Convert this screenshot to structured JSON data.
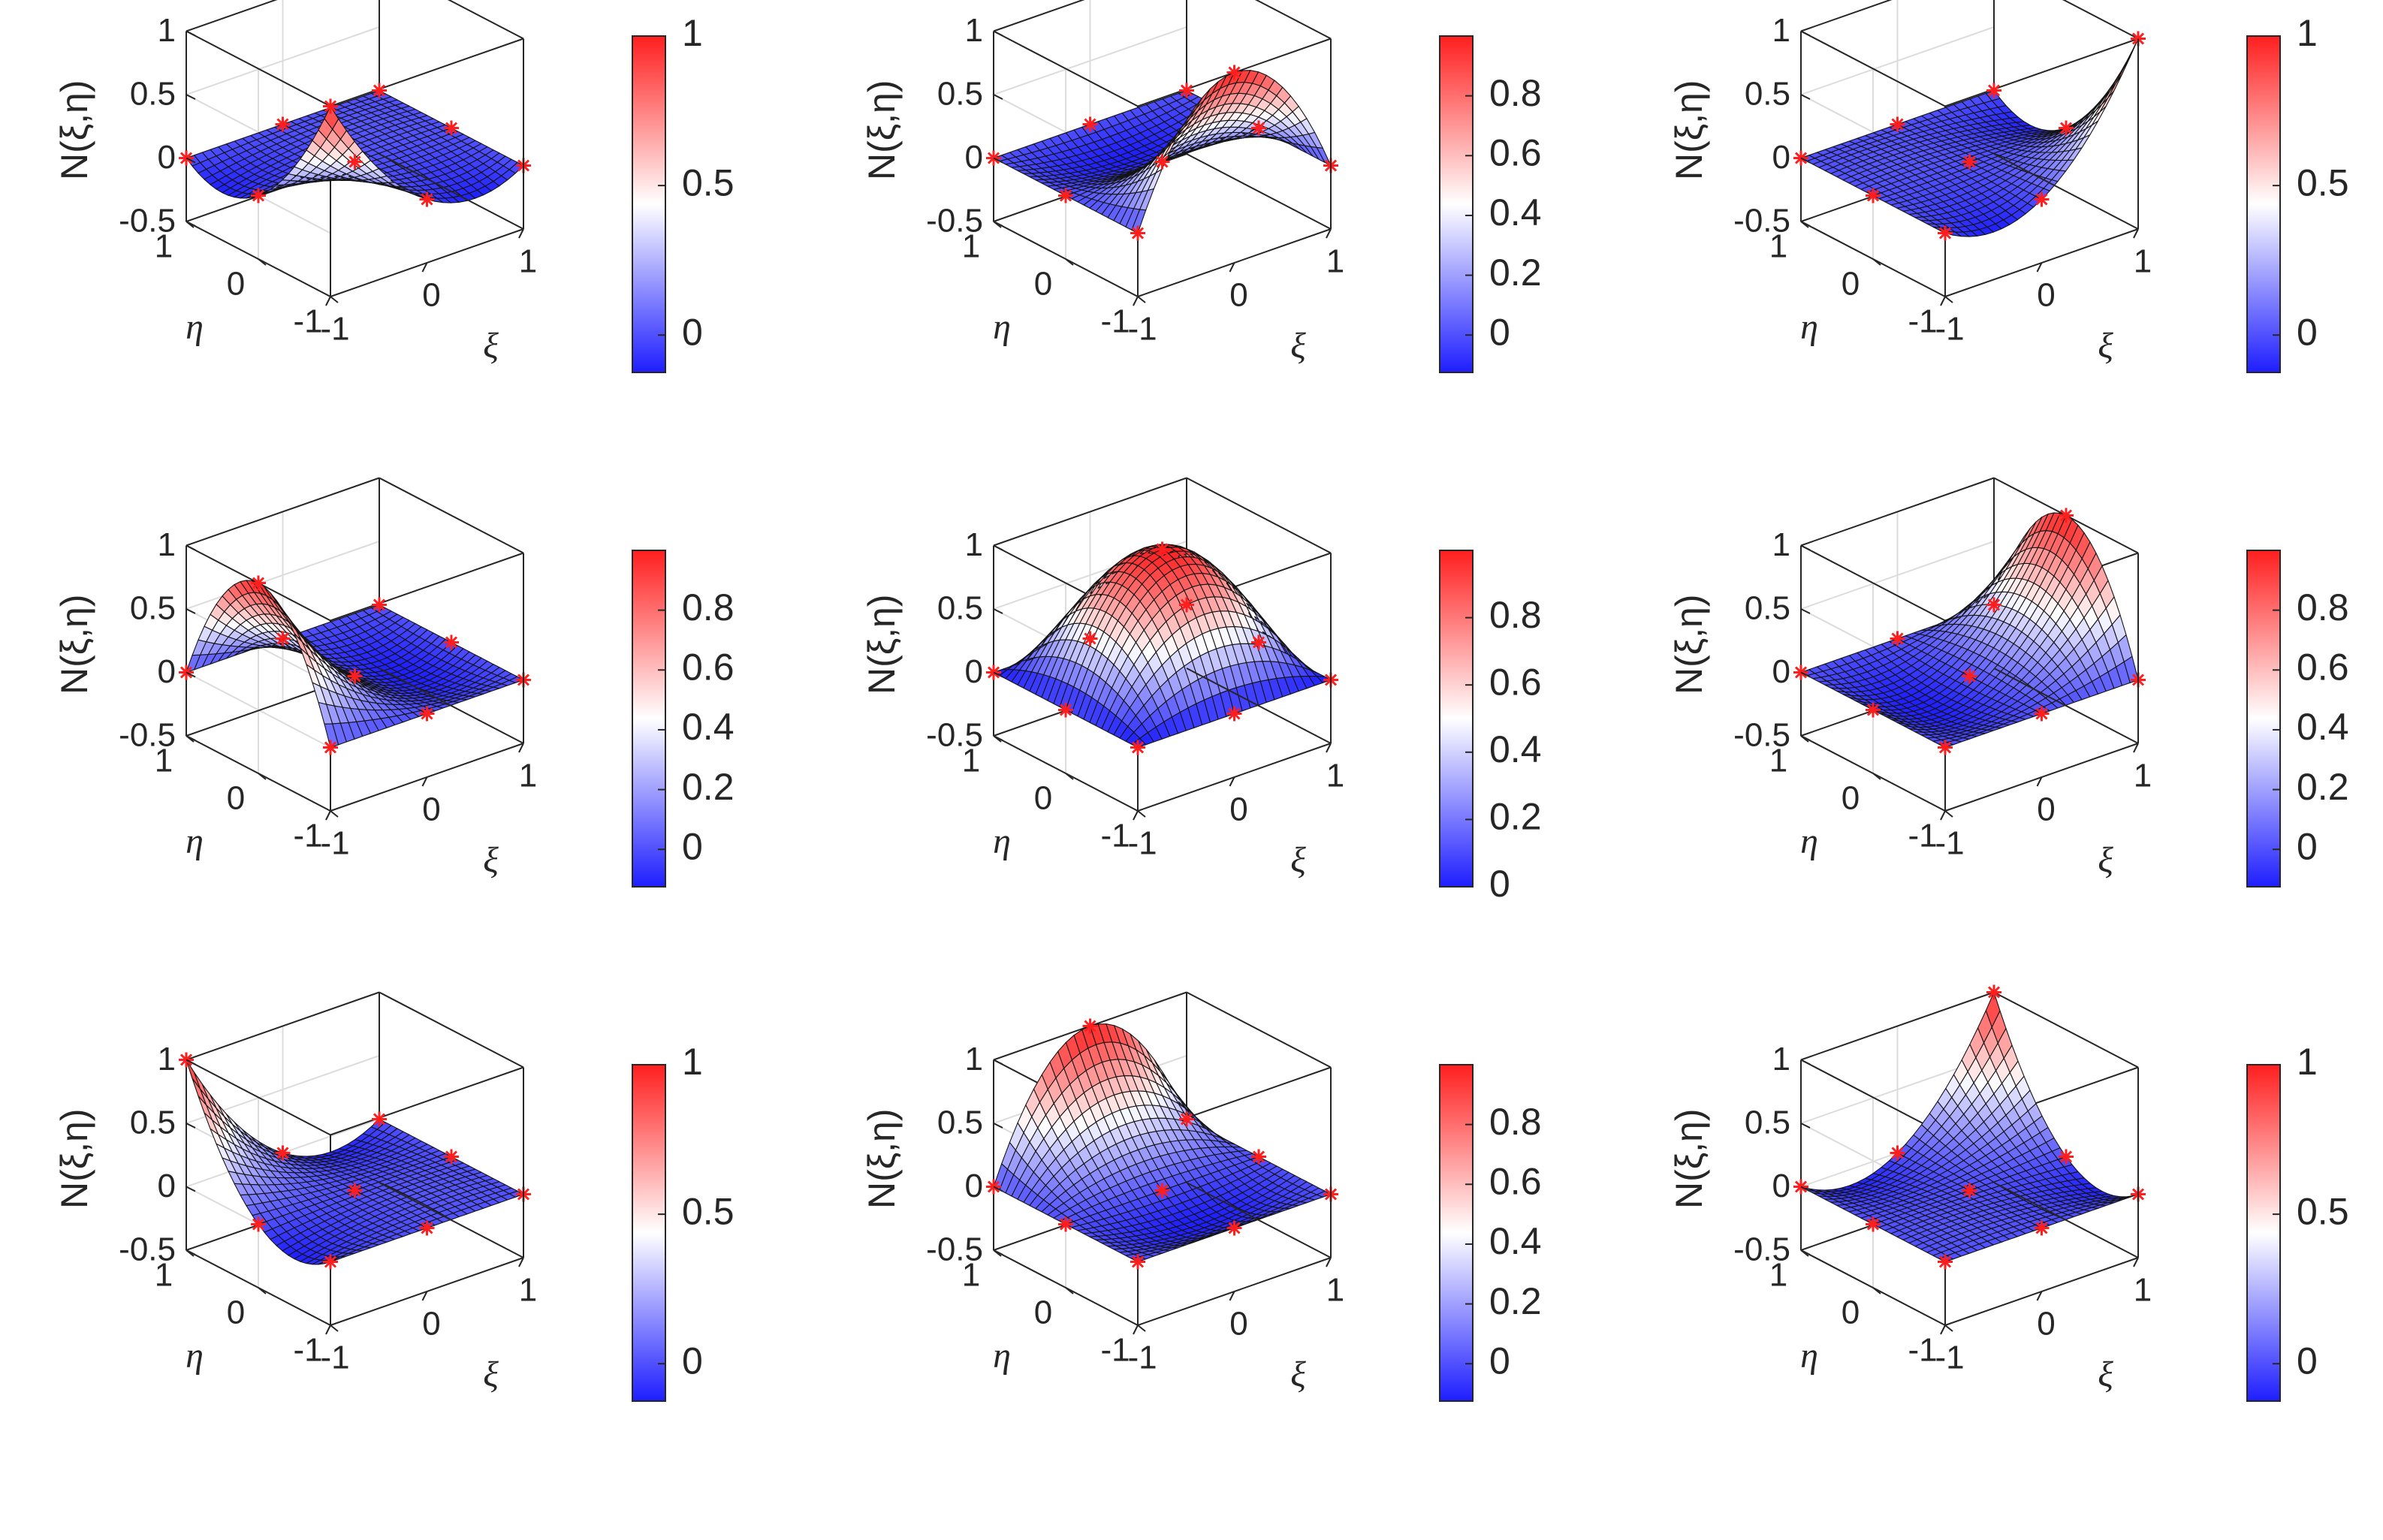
{
  "figure": {
    "colormap": {
      "low": "#1e1eff",
      "mid": "#ffffff",
      "high": "#ff1e1e"
    },
    "marker_color": "#ff1e1e",
    "mesh_color": "#141414",
    "axis_color": "#262626"
  },
  "chart_data": [
    {
      "type": "surface",
      "id": "N1",
      "title": "",
      "xlabel": "ξ",
      "ylabel": "η",
      "zlabel": "N(ξ,η)",
      "xlim": [
        -1,
        1
      ],
      "ylim": [
        -1,
        1
      ],
      "zlim": [
        -0.5,
        1
      ],
      "xticks": [
        "-1",
        "0",
        "1"
      ],
      "yticks": [
        "-1",
        "0",
        "1"
      ],
      "zticks": [
        "-0.5",
        "0",
        "0.5",
        "1"
      ],
      "colorbar": {
        "range": [
          -0.125,
          1
        ],
        "ticks": [
          "0",
          "0.5",
          "1"
        ],
        "tick_values": [
          0,
          0.5,
          1
        ]
      },
      "node": [
        -1,
        -1
      ],
      "nodes": [
        [
          -1,
          -1
        ],
        [
          0,
          -1
        ],
        [
          1,
          -1
        ],
        [
          -1,
          0
        ],
        [
          0,
          0
        ],
        [
          1,
          0
        ],
        [
          -1,
          1
        ],
        [
          0,
          1
        ],
        [
          1,
          1
        ]
      ]
    },
    {
      "type": "surface",
      "id": "N2",
      "title": "",
      "xlabel": "ξ",
      "ylabel": "η",
      "zlabel": "N(ξ,η)",
      "xlim": [
        -1,
        1
      ],
      "ylim": [
        -1,
        1
      ],
      "zlim": [
        -0.5,
        1
      ],
      "xticks": [
        "-1",
        "0",
        "1"
      ],
      "yticks": [
        "-1",
        "0",
        "1"
      ],
      "zticks": [
        "-0.5",
        "0",
        "0.5",
        "1"
      ],
      "colorbar": {
        "range": [
          -0.125,
          1
        ],
        "ticks": [
          "0",
          "0.2",
          "0.4",
          "0.6",
          "0.8"
        ],
        "tick_values": [
          0,
          0.2,
          0.4,
          0.6,
          0.8
        ]
      },
      "node": [
        0,
        -1
      ],
      "nodes": [
        [
          -1,
          -1
        ],
        [
          0,
          -1
        ],
        [
          1,
          -1
        ],
        [
          -1,
          0
        ],
        [
          0,
          0
        ],
        [
          1,
          0
        ],
        [
          -1,
          1
        ],
        [
          0,
          1
        ],
        [
          1,
          1
        ]
      ]
    },
    {
      "type": "surface",
      "id": "N3",
      "title": "",
      "xlabel": "ξ",
      "ylabel": "η",
      "zlabel": "N(ξ,η)",
      "xlim": [
        -1,
        1
      ],
      "ylim": [
        -1,
        1
      ],
      "zlim": [
        -0.5,
        1
      ],
      "xticks": [
        "-1",
        "0",
        "1"
      ],
      "yticks": [
        "-1",
        "0",
        "1"
      ],
      "zticks": [
        "-0.5",
        "0",
        "0.5",
        "1"
      ],
      "colorbar": {
        "range": [
          -0.125,
          1
        ],
        "ticks": [
          "0",
          "0.5",
          "1"
        ],
        "tick_values": [
          0,
          0.5,
          1
        ]
      },
      "node": [
        1,
        -1
      ],
      "nodes": [
        [
          -1,
          -1
        ],
        [
          0,
          -1
        ],
        [
          1,
          -1
        ],
        [
          -1,
          0
        ],
        [
          0,
          0
        ],
        [
          1,
          0
        ],
        [
          -1,
          1
        ],
        [
          0,
          1
        ],
        [
          1,
          1
        ]
      ]
    },
    {
      "type": "surface",
      "id": "N4",
      "title": "",
      "xlabel": "ξ",
      "ylabel": "η",
      "zlabel": "N(ξ,η)",
      "xlim": [
        -1,
        1
      ],
      "ylim": [
        -1,
        1
      ],
      "zlim": [
        -0.5,
        1
      ],
      "xticks": [
        "-1",
        "0",
        "1"
      ],
      "yticks": [
        "-1",
        "0",
        "1"
      ],
      "zticks": [
        "-0.5",
        "0",
        "0.5",
        "1"
      ],
      "colorbar": {
        "range": [
          -0.125,
          1
        ],
        "ticks": [
          "0",
          "0.2",
          "0.4",
          "0.6",
          "0.8"
        ],
        "tick_values": [
          0,
          0.2,
          0.4,
          0.6,
          0.8
        ]
      },
      "node": [
        -1,
        0
      ],
      "nodes": [
        [
          -1,
          -1
        ],
        [
          0,
          -1
        ],
        [
          1,
          -1
        ],
        [
          -1,
          0
        ],
        [
          0,
          0
        ],
        [
          1,
          0
        ],
        [
          -1,
          1
        ],
        [
          0,
          1
        ],
        [
          1,
          1
        ]
      ]
    },
    {
      "type": "surface",
      "id": "N5",
      "title": "",
      "xlabel": "ξ",
      "ylabel": "η",
      "zlabel": "N(ξ,η)",
      "xlim": [
        -1,
        1
      ],
      "ylim": [
        -1,
        1
      ],
      "zlim": [
        -0.5,
        1
      ],
      "xticks": [
        "-1",
        "0",
        "1"
      ],
      "yticks": [
        "-1",
        "0",
        "1"
      ],
      "zticks": [
        "-0.5",
        "0",
        "0.5",
        "1"
      ],
      "colorbar": {
        "range": [
          0,
          1
        ],
        "ticks": [
          "0",
          "0.2",
          "0.4",
          "0.6",
          "0.8"
        ],
        "tick_values": [
          0,
          0.2,
          0.4,
          0.6,
          0.8
        ]
      },
      "node": [
        0,
        0
      ],
      "nodes": [
        [
          -1,
          -1
        ],
        [
          0,
          -1
        ],
        [
          1,
          -1
        ],
        [
          -1,
          0
        ],
        [
          0,
          0
        ],
        [
          1,
          0
        ],
        [
          -1,
          1
        ],
        [
          0,
          1
        ],
        [
          1,
          1
        ]
      ]
    },
    {
      "type": "surface",
      "id": "N6",
      "title": "",
      "xlabel": "ξ",
      "ylabel": "η",
      "zlabel": "N(ξ,η)",
      "xlim": [
        -1,
        1
      ],
      "ylim": [
        -1,
        1
      ],
      "zlim": [
        -0.5,
        1
      ],
      "xticks": [
        "-1",
        "0",
        "1"
      ],
      "yticks": [
        "-1",
        "0",
        "1"
      ],
      "zticks": [
        "-0.5",
        "0",
        "0.5",
        "1"
      ],
      "colorbar": {
        "range": [
          -0.125,
          1
        ],
        "ticks": [
          "0",
          "0.2",
          "0.4",
          "0.6",
          "0.8"
        ],
        "tick_values": [
          0,
          0.2,
          0.4,
          0.6,
          0.8
        ]
      },
      "node": [
        1,
        0
      ],
      "nodes": [
        [
          -1,
          -1
        ],
        [
          0,
          -1
        ],
        [
          1,
          -1
        ],
        [
          -1,
          0
        ],
        [
          0,
          0
        ],
        [
          1,
          0
        ],
        [
          -1,
          1
        ],
        [
          0,
          1
        ],
        [
          1,
          1
        ]
      ]
    },
    {
      "type": "surface",
      "id": "N7",
      "title": "",
      "xlabel": "ξ",
      "ylabel": "η",
      "zlabel": "N(ξ,η)",
      "xlim": [
        -1,
        1
      ],
      "ylim": [
        -1,
        1
      ],
      "zlim": [
        -0.5,
        1
      ],
      "xticks": [
        "-1",
        "0",
        "1"
      ],
      "yticks": [
        "-1",
        "0",
        "1"
      ],
      "zticks": [
        "-0.5",
        "0",
        "0.5",
        "1"
      ],
      "colorbar": {
        "range": [
          -0.125,
          1
        ],
        "ticks": [
          "0",
          "0.5",
          "1"
        ],
        "tick_values": [
          0,
          0.5,
          1
        ]
      },
      "node": [
        -1,
        1
      ],
      "nodes": [
        [
          -1,
          -1
        ],
        [
          0,
          -1
        ],
        [
          1,
          -1
        ],
        [
          -1,
          0
        ],
        [
          0,
          0
        ],
        [
          1,
          0
        ],
        [
          -1,
          1
        ],
        [
          0,
          1
        ],
        [
          1,
          1
        ]
      ]
    },
    {
      "type": "surface",
      "id": "N8",
      "title": "",
      "xlabel": "ξ",
      "ylabel": "η",
      "zlabel": "N(ξ,η)",
      "xlim": [
        -1,
        1
      ],
      "ylim": [
        -1,
        1
      ],
      "zlim": [
        -0.5,
        1
      ],
      "xticks": [
        "-1",
        "0",
        "1"
      ],
      "yticks": [
        "-1",
        "0",
        "1"
      ],
      "zticks": [
        "-0.5",
        "0",
        "0.5",
        "1"
      ],
      "colorbar": {
        "range": [
          -0.125,
          1
        ],
        "ticks": [
          "0",
          "0.2",
          "0.4",
          "0.6",
          "0.8"
        ],
        "tick_values": [
          0,
          0.2,
          0.4,
          0.6,
          0.8
        ]
      },
      "node": [
        0,
        1
      ],
      "nodes": [
        [
          -1,
          -1
        ],
        [
          0,
          -1
        ],
        [
          1,
          -1
        ],
        [
          -1,
          0
        ],
        [
          0,
          0
        ],
        [
          1,
          0
        ],
        [
          -1,
          1
        ],
        [
          0,
          1
        ],
        [
          1,
          1
        ]
      ]
    },
    {
      "type": "surface",
      "id": "N9",
      "title": "",
      "xlabel": "ξ",
      "ylabel": "η",
      "zlabel": "N(ξ,η)",
      "xlim": [
        -1,
        1
      ],
      "ylim": [
        -1,
        1
      ],
      "zlim": [
        -0.5,
        1
      ],
      "xticks": [
        "-1",
        "0",
        "1"
      ],
      "yticks": [
        "-1",
        "0",
        "1"
      ],
      "zticks": [
        "-0.5",
        "0",
        "0.5",
        "1"
      ],
      "colorbar": {
        "range": [
          -0.125,
          1
        ],
        "ticks": [
          "0",
          "0.5",
          "1"
        ],
        "tick_values": [
          0,
          0.5,
          1
        ]
      },
      "node": [
        1,
        1
      ],
      "nodes": [
        [
          -1,
          -1
        ],
        [
          0,
          -1
        ],
        [
          1,
          -1
        ],
        [
          -1,
          0
        ],
        [
          0,
          0
        ],
        [
          1,
          0
        ],
        [
          -1,
          1
        ],
        [
          0,
          1
        ],
        [
          1,
          1
        ]
      ]
    }
  ]
}
